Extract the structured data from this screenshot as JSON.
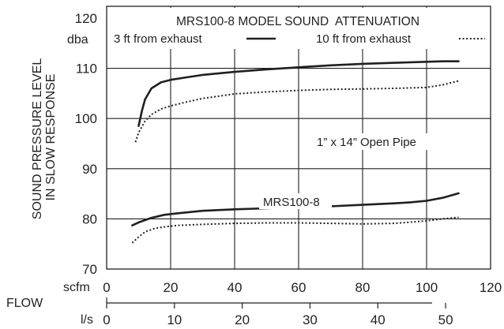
{
  "chart_data": {
    "type": "line",
    "title": "MRS100-8 MODEL SOUND  ATTENUATION",
    "legend": [
      {
        "label": "3 ft from exhaust",
        "style": "solid"
      },
      {
        "label": "10 ft from exhaust",
        "style": "dotted"
      }
    ],
    "ylabel_lines": [
      "SOUND PRESSURE LEVEL",
      "IN SLOW RESPONSE"
    ],
    "y_unit": "dba",
    "ylim": [
      70,
      120
    ],
    "y_ticks": [
      70,
      80,
      90,
      100,
      110,
      120
    ],
    "xlim": [
      0,
      120
    ],
    "x_unit": "scfm",
    "x_ticks": [
      0,
      20,
      40,
      60,
      80,
      100,
      120
    ],
    "x2_unit": "l/s",
    "x2_ticks": [
      0,
      10,
      20,
      30,
      40,
      50
    ],
    "x2_scale_scfm_per_ls": 2.11888,
    "flow_label": "FLOW",
    "grid": true,
    "legend_placement": "top",
    "annotations": [
      {
        "text": "1” x 14” Open Pipe"
      },
      {
        "text": "MRS100-8"
      }
    ],
    "series": [
      {
        "group": "1” x 14” Open Pipe",
        "distance": "3 ft",
        "style": "solid",
        "x": [
          10,
          11,
          12,
          14,
          17,
          20,
          25,
          30,
          40,
          50,
          60,
          70,
          80,
          90,
          100,
          105,
          110
        ],
        "y": [
          98.5,
          101.5,
          103.8,
          106,
          107.2,
          107.7,
          108.2,
          108.7,
          109.3,
          109.8,
          110.2,
          110.6,
          110.9,
          111.1,
          111.3,
          111.4,
          111.4
        ]
      },
      {
        "group": "1” x 14” Open Pipe",
        "distance": "10 ft",
        "style": "dotted",
        "x": [
          9,
          10,
          12,
          14,
          17,
          20,
          25,
          30,
          40,
          50,
          60,
          70,
          80,
          90,
          100,
          105,
          110
        ],
        "y": [
          95.3,
          97.2,
          99.5,
          100.8,
          101.9,
          102.5,
          103.3,
          104,
          104.9,
          105.3,
          105.6,
          105.8,
          105.9,
          106,
          106.2,
          106.7,
          107.5
        ]
      },
      {
        "group": "MRS100-8",
        "distance": "3 ft",
        "style": "solid",
        "x": [
          8,
          10,
          14,
          18,
          22,
          30,
          40,
          50,
          60,
          70,
          80,
          90,
          95,
          100,
          105,
          110
        ],
        "y": [
          78.7,
          79.3,
          80.2,
          80.8,
          81.1,
          81.6,
          81.9,
          82.1,
          82.3,
          82.5,
          82.8,
          83.1,
          83.3,
          83.6,
          84.2,
          85.1
        ]
      },
      {
        "group": "MRS100-8",
        "distance": "10 ft",
        "style": "dotted",
        "x": [
          8,
          10,
          12,
          15,
          18,
          22,
          30,
          40,
          50,
          60,
          70,
          80,
          90,
          100,
          105,
          110
        ],
        "y": [
          75.2,
          76.4,
          77.4,
          78.1,
          78.4,
          78.7,
          78.9,
          79.1,
          79.2,
          79.2,
          79.1,
          79,
          79.1,
          79.6,
          80,
          80.3
        ]
      }
    ]
  }
}
